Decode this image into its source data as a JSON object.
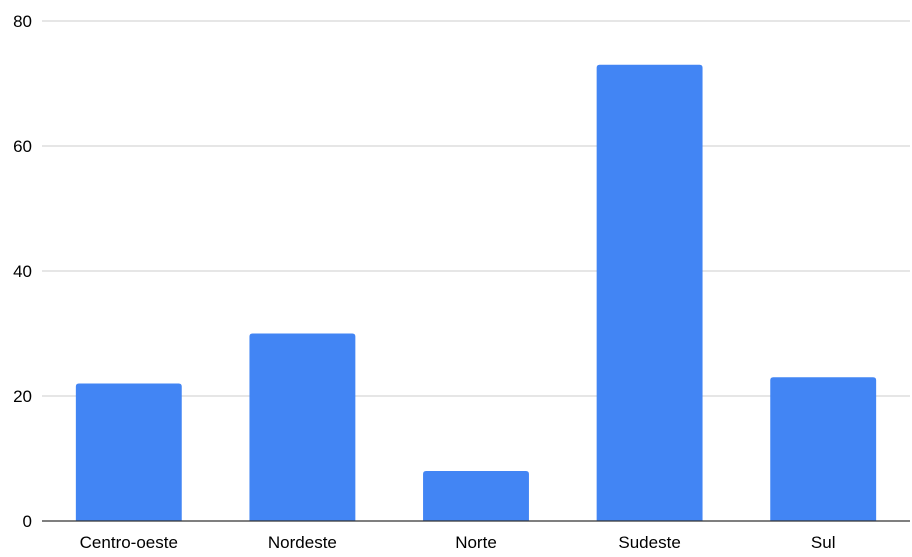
{
  "chart_data": {
    "type": "bar",
    "title": "",
    "xlabel": "",
    "ylabel": "",
    "categories": [
      "Centro-oeste",
      "Nordeste",
      "Norte",
      "Sudeste",
      "Sul"
    ],
    "values": [
      22,
      30,
      8,
      73,
      23
    ],
    "ylim": [
      0,
      80
    ],
    "yticks": [
      0,
      20,
      40,
      60,
      80
    ],
    "grid": true,
    "legend": "none",
    "colors": {
      "bar": "#4285f4",
      "grid": "#cccccc",
      "axis": "#333333",
      "text": "#000000"
    }
  }
}
